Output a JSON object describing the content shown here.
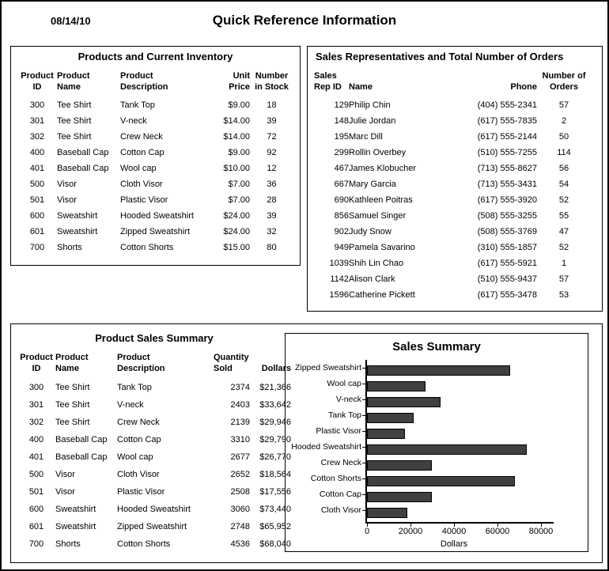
{
  "page": {
    "date": "08/14/10",
    "title": "Quick Reference Information"
  },
  "inventory": {
    "title": "Products and Current Inventory",
    "headers": [
      "Product\nID",
      "Product\nName",
      "Product\nDescription",
      "Unit\nPrice",
      "Number\nin Stock"
    ],
    "rows": [
      [
        "300",
        "Tee Shirt",
        "Tank Top",
        "$9.00",
        "18"
      ],
      [
        "301",
        "Tee Shirt",
        "V-neck",
        "$14.00",
        "39"
      ],
      [
        "302",
        "Tee Shirt",
        "Crew Neck",
        "$14.00",
        "72"
      ],
      [
        "400",
        "Baseball Cap",
        "Cotton Cap",
        "$9.00",
        "92"
      ],
      [
        "401",
        "Baseball Cap",
        "Wool cap",
        "$10.00",
        "12"
      ],
      [
        "500",
        "Visor",
        "Cloth Visor",
        "$7.00",
        "36"
      ],
      [
        "501",
        "Visor",
        "Plastic Visor",
        "$7.00",
        "28"
      ],
      [
        "600",
        "Sweatshirt",
        "Hooded Sweatshirt",
        "$24.00",
        "39"
      ],
      [
        "601",
        "Sweatshirt",
        "Zipped Sweatshirt",
        "$24.00",
        "32"
      ],
      [
        "700",
        "Shorts",
        "Cotton Shorts",
        "$15.00",
        "80"
      ]
    ]
  },
  "sales_reps": {
    "title": "Sales Representatives and Total Number of Orders",
    "headers": [
      "Sales\nRep ID",
      "Name",
      "Phone",
      "Number of\nOrders"
    ],
    "rows": [
      [
        "129",
        "Philip Chin",
        "(404) 555-2341",
        "57"
      ],
      [
        "148",
        "Julie Jordan",
        "(617) 555-7835",
        "2"
      ],
      [
        "195",
        "Marc Dill",
        "(617) 555-2144",
        "50"
      ],
      [
        "299",
        "Rollin Overbey",
        "(510) 555-7255",
        "114"
      ],
      [
        "467",
        "James Klobucher",
        "(713) 555-8627",
        "56"
      ],
      [
        "667",
        "Mary Garcia",
        "(713) 555-3431",
        "54"
      ],
      [
        "690",
        "Kathleen Poitras",
        "(617) 555-3920",
        "52"
      ],
      [
        "856",
        "Samuel Singer",
        "(508) 555-3255",
        "55"
      ],
      [
        "902",
        "Judy Snow",
        "(508) 555-3769",
        "47"
      ],
      [
        "949",
        "Pamela Savarino",
        "(310) 555-1857",
        "52"
      ],
      [
        "1039",
        "Shih Lin Chao",
        "(617) 555-5921",
        "1"
      ],
      [
        "1142",
        "Alison Clark",
        "(510) 555-9437",
        "57"
      ],
      [
        "1596",
        "Catherine Pickett",
        "(617) 555-3478",
        "53"
      ]
    ]
  },
  "product_sales": {
    "title": "Product Sales Summary",
    "headers": [
      "Product\nID",
      "Product\nName",
      "Product\nDescription",
      "Quantity\nSold",
      "Dollars"
    ],
    "rows": [
      [
        "300",
        "Tee Shirt",
        "Tank Top",
        "2374",
        "$21,366"
      ],
      [
        "301",
        "Tee Shirt",
        "V-neck",
        "2403",
        "$33,642"
      ],
      [
        "302",
        "Tee Shirt",
        "Crew Neck",
        "2139",
        "$29,946"
      ],
      [
        "400",
        "Baseball Cap",
        "Cotton Cap",
        "3310",
        "$29,790"
      ],
      [
        "401",
        "Baseball Cap",
        "Wool cap",
        "2677",
        "$26,770"
      ],
      [
        "500",
        "Visor",
        "Cloth Visor",
        "2652",
        "$18,564"
      ],
      [
        "501",
        "Visor",
        "Plastic Visor",
        "2508",
        "$17,556"
      ],
      [
        "600",
        "Sweatshirt",
        "Hooded Sweatshirt",
        "3060",
        "$73,440"
      ],
      [
        "601",
        "Sweatshirt",
        "Zipped Sweatshirt",
        "2748",
        "$65,952"
      ],
      [
        "700",
        "Shorts",
        "Cotton Shorts",
        "4536",
        "$68,040"
      ]
    ]
  },
  "chart_data": {
    "type": "bar",
    "orientation": "horizontal",
    "title": "Sales Summary",
    "categories": [
      "Zipped Sweatshirt",
      "Wool cap",
      "V-neck",
      "Tank Top",
      "Plastic Visor",
      "Hooded Sweatshirt",
      "Crew Neck",
      "Cotton Shorts",
      "Cotton Cap",
      "Cloth Visor"
    ],
    "values": [
      65952,
      26770,
      33642,
      21366,
      17556,
      73440,
      29946,
      68040,
      29790,
      18564
    ],
    "xlabel": "Dollars",
    "xlim": [
      0,
      80000
    ],
    "xticks": [
      0,
      20000,
      40000,
      60000,
      80000
    ],
    "grid": false,
    "legend": "none",
    "bar_color": "#404040",
    "bar_border_color": "#000000"
  }
}
